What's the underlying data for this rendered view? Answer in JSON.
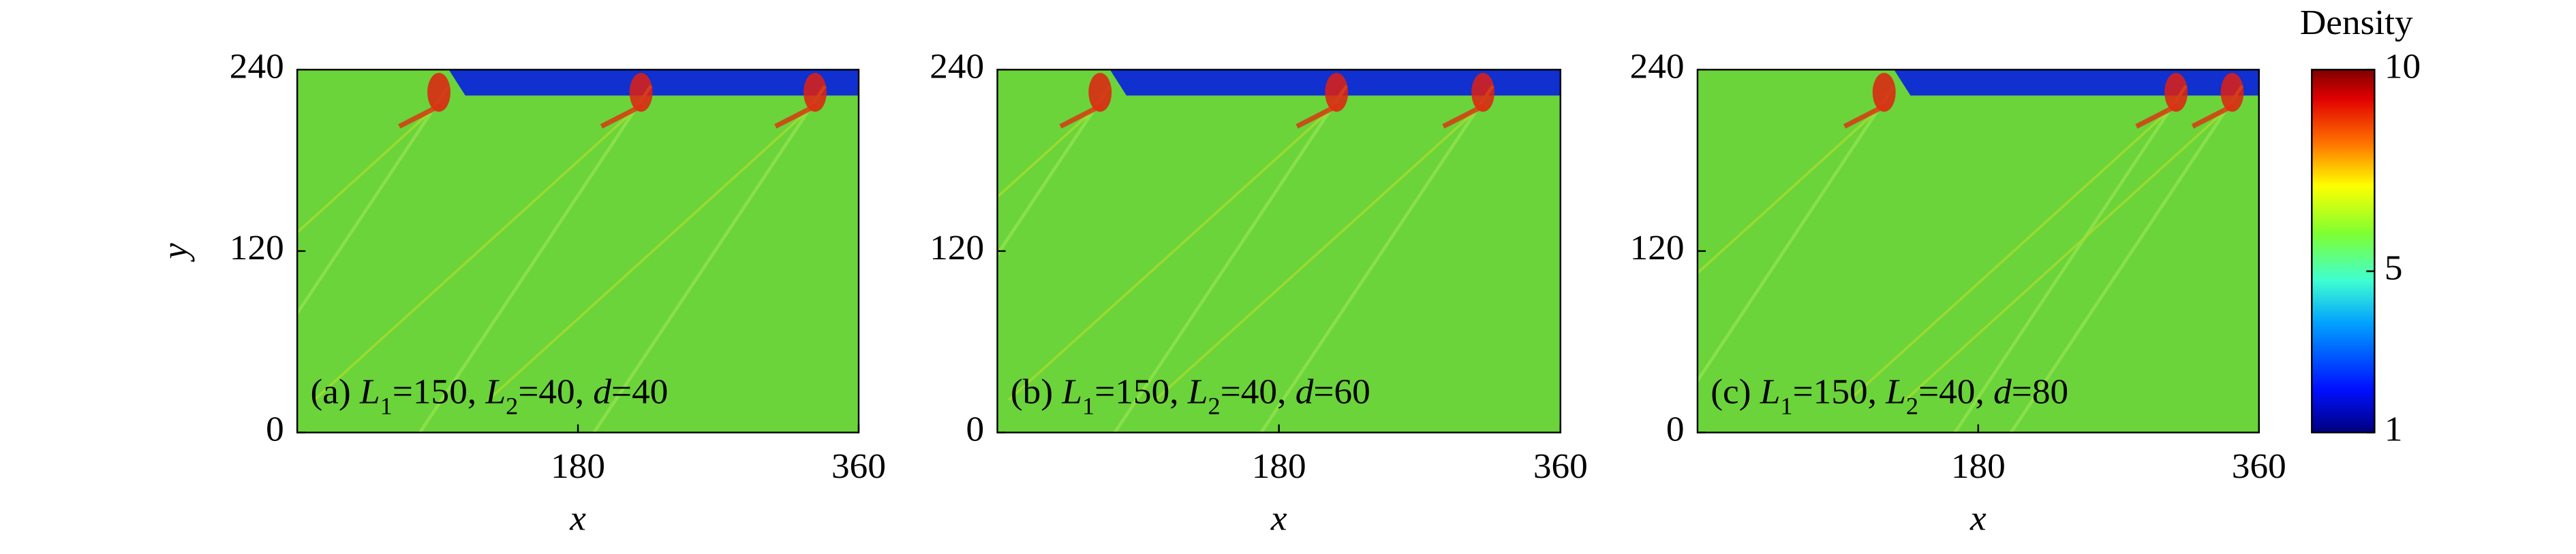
{
  "chart_data": [
    {
      "type": "heatmap",
      "xlabel": "x",
      "ylabel": "y",
      "xlim": [
        0,
        360
      ],
      "ylim": [
        0,
        240
      ],
      "xticks": [
        180,
        360
      ],
      "yticks": [
        0,
        120,
        240
      ],
      "annotation": [
        "(a) ",
        "L",
        "1",
        "=150, ",
        "L",
        "2",
        "=40, ",
        "d",
        "=40"
      ]
    },
    {
      "type": "heatmap",
      "xlabel": "x",
      "xlim": [
        0,
        360
      ],
      "ylim": [
        0,
        240
      ],
      "xticks": [
        180,
        360
      ],
      "yticks": [
        0,
        120,
        240
      ],
      "annotation": [
        "(b) ",
        "L",
        "1",
        "=150, ",
        "L",
        "2",
        "=40, ",
        "d",
        "=60"
      ]
    },
    {
      "type": "heatmap",
      "xlabel": "x",
      "xlim": [
        0,
        360
      ],
      "ylim": [
        0,
        240
      ],
      "xticks": [
        180,
        360
      ],
      "yticks": [
        0,
        120,
        240
      ],
      "annotation": [
        "(c) ",
        "L",
        "1",
        "=150, ",
        "L",
        "2",
        "=40, ",
        "d",
        "=80"
      ]
    }
  ],
  "colorbar": {
    "title": "Density",
    "lim": [
      1,
      10
    ],
    "ticks": [
      1,
      5,
      10
    ]
  }
}
